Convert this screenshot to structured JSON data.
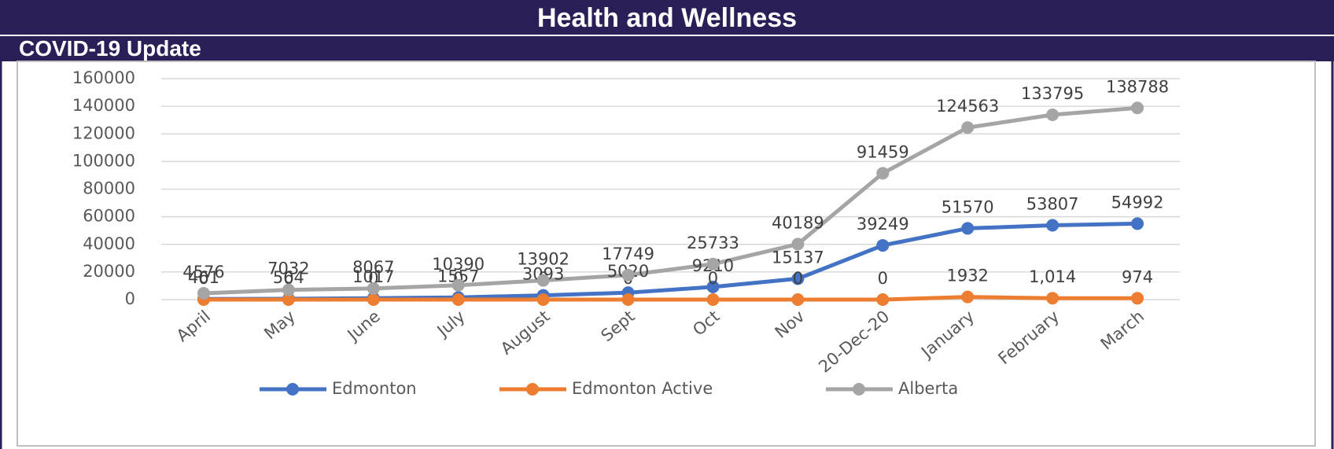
{
  "header": {
    "title": "Health and Wellness",
    "subtitle": "COVID-19 Update"
  },
  "chart_data": {
    "type": "line",
    "categories": [
      "April",
      "May",
      "June",
      "July",
      "August",
      "Sept",
      "Oct",
      "Nov",
      "20-Dec-20",
      "January",
      "February",
      "March"
    ],
    "series": [
      {
        "name": "Edmonton",
        "color": "#4472c4",
        "values": [
          461,
          564,
          1017,
          1557,
          3093,
          5020,
          9210,
          15137,
          39249,
          51570,
          53807,
          54992
        ]
      },
      {
        "name": "Edmonton Active",
        "color": "#ed7d31",
        "values": [
          0,
          0,
          0,
          0,
          0,
          0,
          0,
          0,
          0,
          1932,
          1014,
          974
        ],
        "value_labels": [
          "0",
          "0",
          "0",
          "0",
          "0",
          "0",
          "0",
          "0",
          "0",
          "1932",
          "1,014",
          "974"
        ]
      },
      {
        "name": "Alberta",
        "color": "#a5a5a5",
        "values": [
          4576,
          7032,
          8067,
          10390,
          13902,
          17749,
          25733,
          40189,
          91459,
          124563,
          133795,
          138788
        ]
      }
    ],
    "ylim": [
      0,
      160000
    ],
    "yticks": [
      0,
      20000,
      40000,
      60000,
      80000,
      100000,
      120000,
      140000,
      160000
    ],
    "grid": true,
    "legend": "bottom"
  }
}
